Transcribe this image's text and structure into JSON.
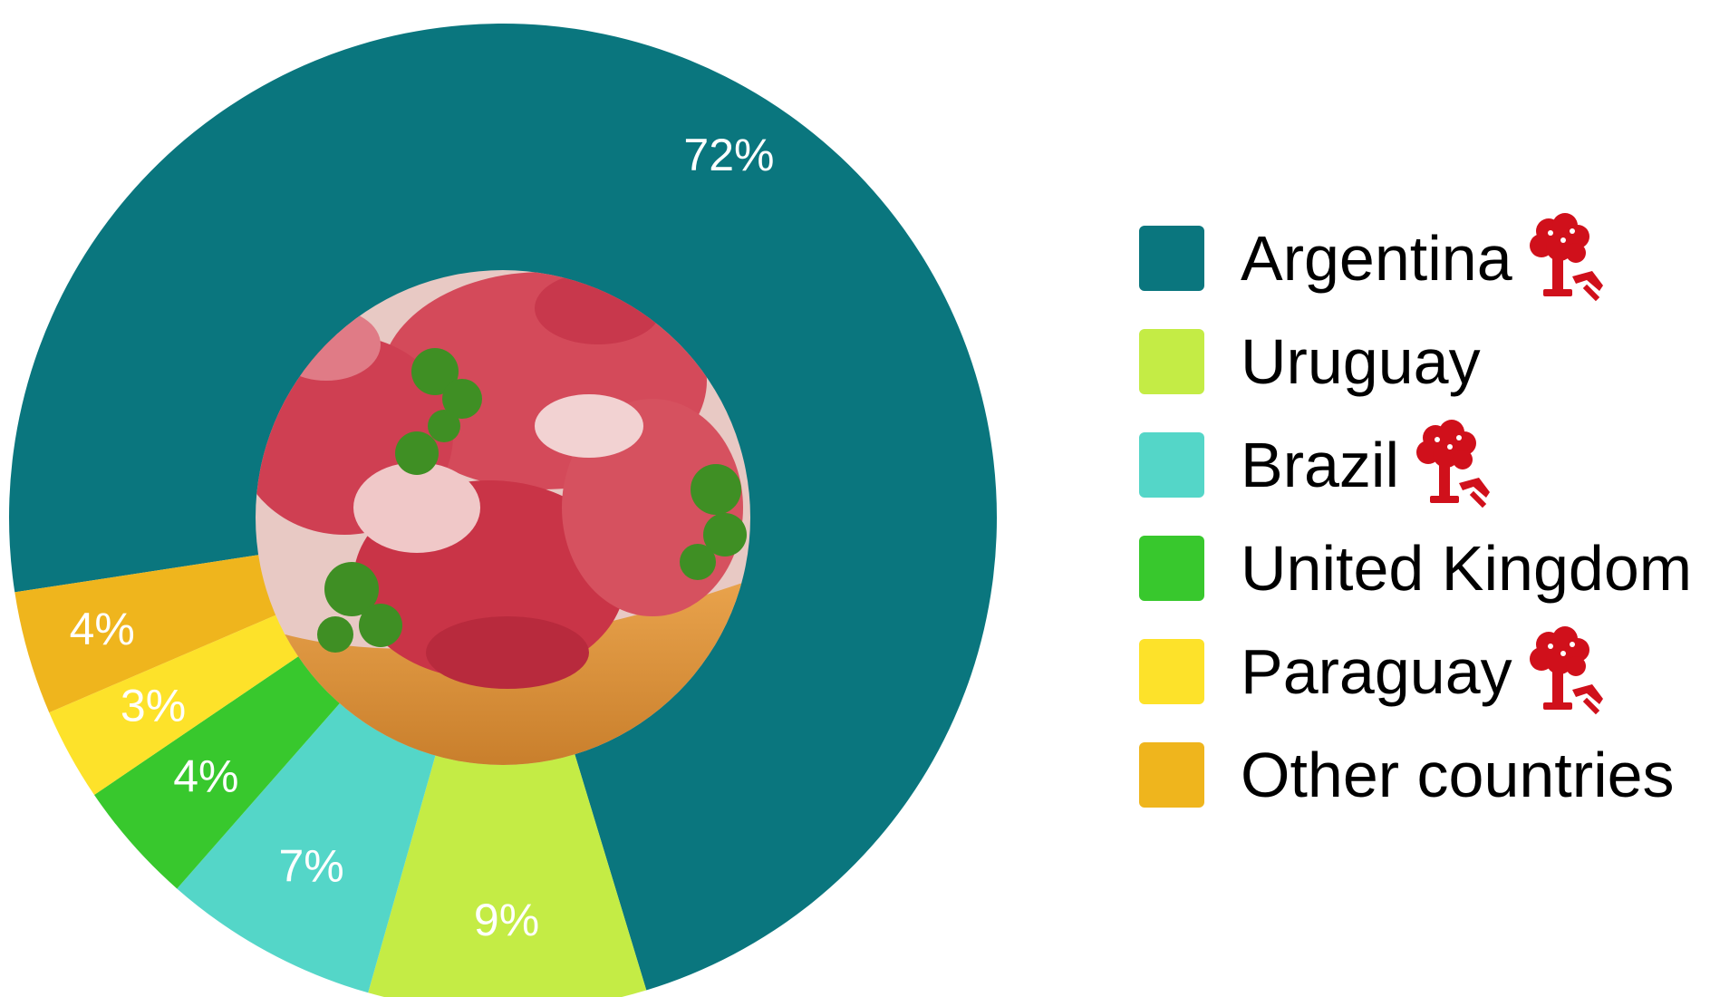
{
  "chart_data": {
    "type": "pie",
    "variant": "donut",
    "categories": [
      "Argentina",
      "Uruguay",
      "Brazil",
      "United Kingdom",
      "Paraguay",
      "Other countries"
    ],
    "values": [
      72,
      9,
      7,
      4,
      3,
      4
    ],
    "value_labels": [
      "72%",
      "9%",
      "7%",
      "4%",
      "3%",
      "4%"
    ],
    "colors": [
      "#0a767e",
      "#c4ec45",
      "#54d6c8",
      "#38c82d",
      "#fde22a",
      "#efb51d"
    ],
    "legend": {
      "position": "right"
    },
    "center": {
      "image": "raw-meat-with-parsley-photo"
    }
  },
  "legend_items": [
    {
      "label": "Argentina",
      "color": "#0a767e",
      "icon": "tree-with-axe-icon"
    },
    {
      "label": "Uruguay",
      "color": "#c4ec45",
      "icon": null
    },
    {
      "label": "Brazil",
      "color": "#54d6c8",
      "icon": "tree-with-axe-icon"
    },
    {
      "label": "United Kingdom",
      "color": "#38c82d",
      "icon": null
    },
    {
      "label": "Paraguay",
      "color": "#fde22a",
      "icon": "tree-with-axe-icon"
    },
    {
      "label": "Other countries",
      "color": "#efb51d",
      "icon": null
    }
  ],
  "icon_color": "#d0101b"
}
